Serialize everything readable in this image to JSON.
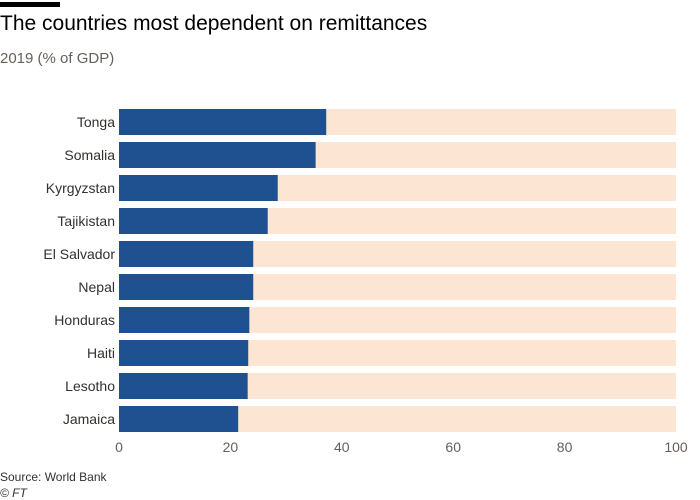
{
  "header": {
    "title": "The countries most dependent on remittances",
    "subtitle": "2019 (% of GDP)"
  },
  "footer": {
    "source": "Source: World Bank",
    "credit": "© FT"
  },
  "colors": {
    "bar": "#1f5190",
    "track": "#fde5d4",
    "axis_text": "#66605c",
    "label_text": "#33302e"
  },
  "chart_data": {
    "type": "bar",
    "orientation": "horizontal",
    "title": "The countries most dependent on remittances",
    "subtitle": "2019 (% of GDP)",
    "categories": [
      "Tonga",
      "Somalia",
      "Kyrgyzstan",
      "Tajikistan",
      "El Salvador",
      "Nepal",
      "Honduras",
      "Haiti",
      "Lesotho",
      "Jamaica"
    ],
    "values": [
      37.2,
      35.3,
      28.5,
      26.7,
      24.1,
      24.1,
      23.4,
      23.2,
      23.1,
      21.4
    ],
    "xlim": [
      0,
      100
    ],
    "xticks": [
      0,
      20,
      40,
      60,
      80,
      100
    ],
    "background_track_to": 100,
    "grid": false,
    "legend": "none",
    "source": "Source: World Bank"
  }
}
